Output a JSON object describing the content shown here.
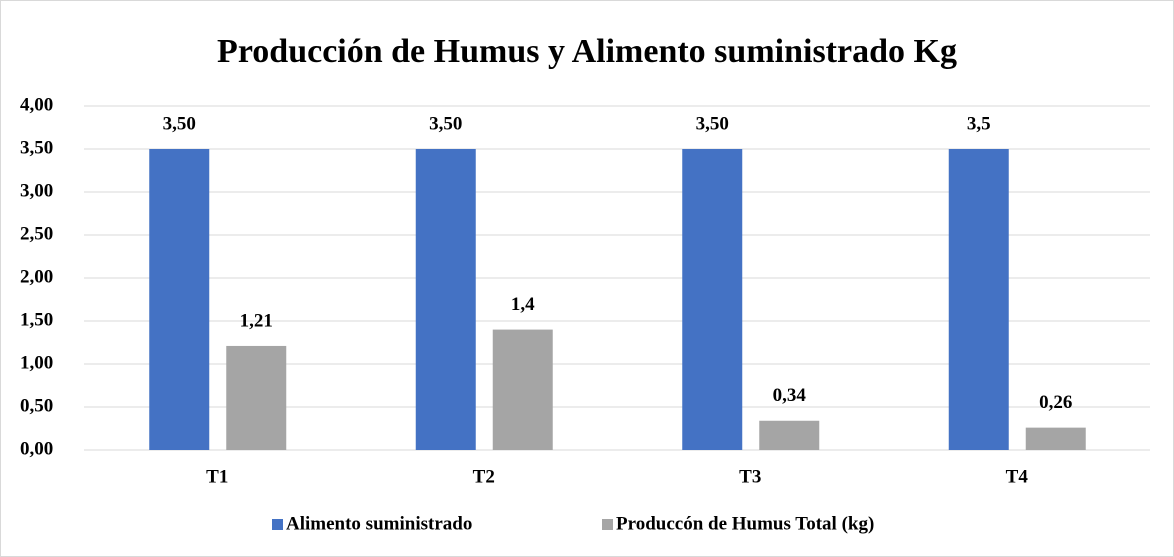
{
  "chart_data": {
    "type": "bar",
    "title": "Producción de Humus y Alimento suministrado Kg",
    "categories": [
      "T1",
      "T2",
      "T3",
      "T4"
    ],
    "series": [
      {
        "name": "Alimento suministrado",
        "color": "#4472c4",
        "values": [
          3.5,
          3.5,
          3.5,
          3.5
        ],
        "value_labels": [
          "3,50",
          "3,50",
          "3,50",
          "3,5"
        ]
      },
      {
        "name": "Produccón de Humus Total (kg)",
        "color": "#a5a5a5",
        "values": [
          1.21,
          1.4,
          0.34,
          0.26
        ],
        "value_labels": [
          "1,21",
          "1,4",
          "0,34",
          "0,26"
        ]
      }
    ],
    "ylim": [
      0,
      4
    ],
    "yticks": [
      {
        "value": 0,
        "label": "0,00"
      },
      {
        "value": 0.5,
        "label": "0,50"
      },
      {
        "value": 1,
        "label": "1,00"
      },
      {
        "value": 1.5,
        "label": "1,50"
      },
      {
        "value": 2,
        "label": "2,00"
      },
      {
        "value": 2.5,
        "label": "2,50"
      },
      {
        "value": 3,
        "label": "3,00"
      },
      {
        "value": 3.5,
        "label": "3,50"
      },
      {
        "value": 4,
        "label": "4,00"
      }
    ],
    "grid": true,
    "legend": "bottom"
  }
}
